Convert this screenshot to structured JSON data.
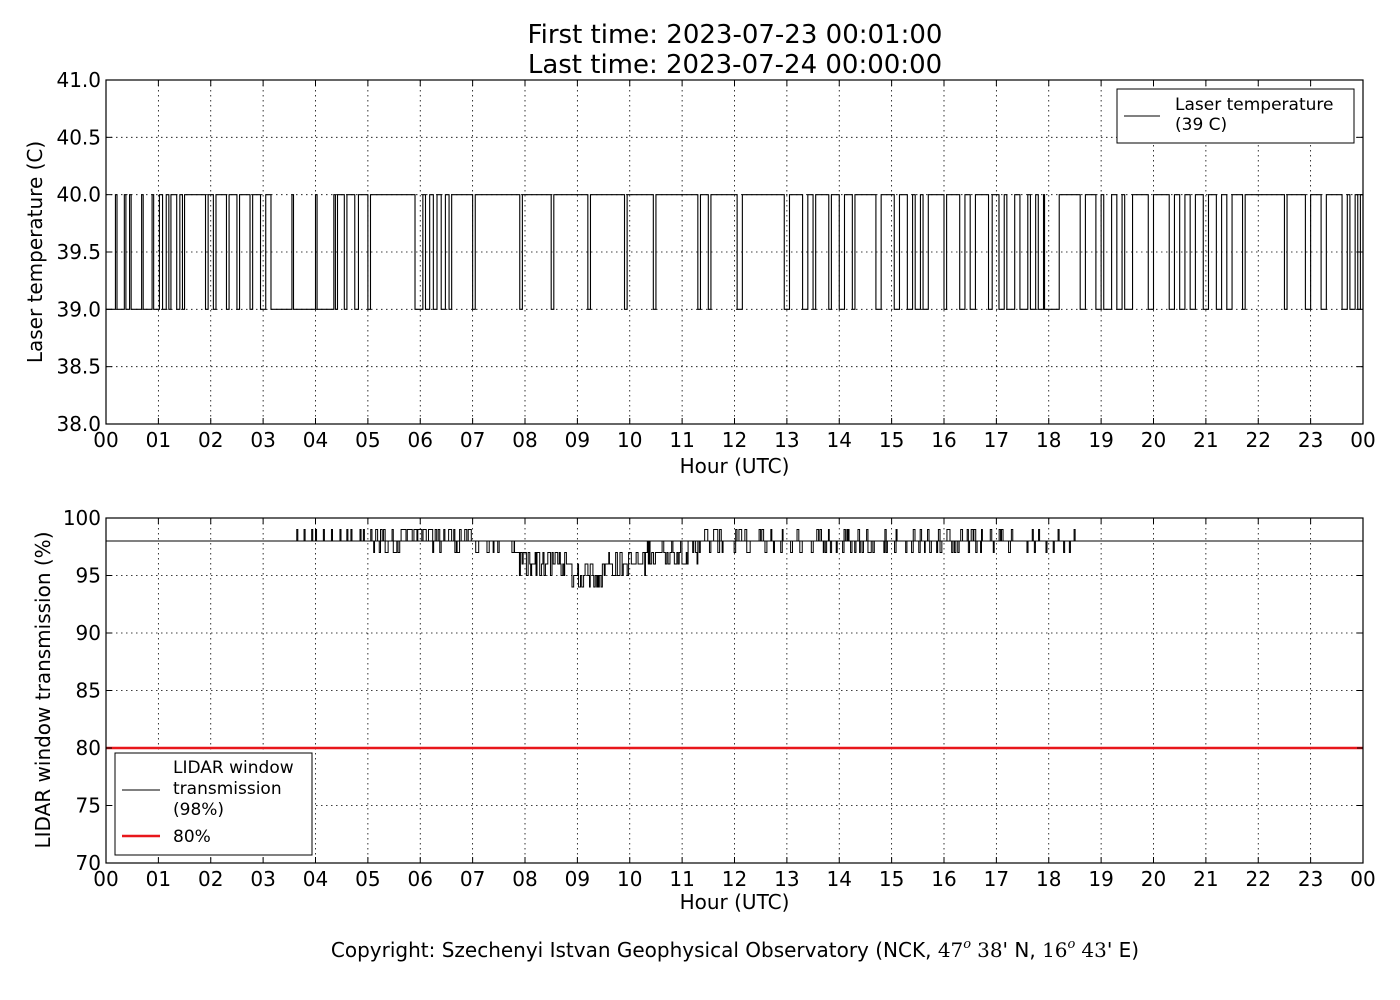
{
  "header": {
    "first_time": "First time: 2023-07-23 00:01:00",
    "last_time": "Last time: 2023-07-24 00:00:00"
  },
  "footer": {
    "prefix": "Copyright: Szechenyi Istvan Geophysical Observatory (NCK, ",
    "lat_deg": "47",
    "deg_mark": "o",
    "lat_min": "38",
    "lat_rest": "' N, ",
    "lon_deg": "16",
    "lon_min": "43",
    "lon_rest": "' E)"
  },
  "colors": {
    "series": "#000000",
    "threshold": "#e8171b",
    "grid": "#000000",
    "background": "#ffffff"
  },
  "chart_data": [
    {
      "type": "line",
      "xlabel": "Hour (UTC)",
      "ylabel": "Laser temperature (C)",
      "xlim": [
        0,
        24
      ],
      "ylim": [
        38.0,
        41.0
      ],
      "x_tick_labels": [
        "00",
        "01",
        "02",
        "03",
        "04",
        "05",
        "06",
        "07",
        "08",
        "09",
        "10",
        "11",
        "12",
        "13",
        "14",
        "15",
        "16",
        "17",
        "18",
        "19",
        "20",
        "21",
        "22",
        "23",
        "00"
      ],
      "y_ticks": [
        38.0,
        38.5,
        39.0,
        39.5,
        40.0,
        40.5,
        41.0
      ],
      "y_tick_labels": [
        "38.0",
        "38.5",
        "39.0",
        "39.5",
        "40.0",
        "40.5",
        "41.0"
      ],
      "grid": true,
      "legend_position": "top-right",
      "series": [
        {
          "name": "Laser temperature\n(39 C)",
          "low": 39.0,
          "high": 40.0,
          "high_segments": [
            [
              0.18,
              0.21
            ],
            [
              0.35,
              0.38
            ],
            [
              0.45,
              0.48
            ],
            [
              0.68,
              0.71
            ],
            [
              0.88,
              0.91
            ],
            [
              1.02,
              1.08
            ],
            [
              1.15,
              1.2
            ],
            [
              1.24,
              1.35
            ],
            [
              1.41,
              1.46
            ],
            [
              1.5,
              1.9
            ],
            [
              1.95,
              2.05
            ],
            [
              2.1,
              2.3
            ],
            [
              2.35,
              2.5
            ],
            [
              2.55,
              2.75
            ],
            [
              2.8,
              2.95
            ],
            [
              3.05,
              3.15
            ],
            [
              3.55,
              3.58
            ],
            [
              4.0,
              4.03
            ],
            [
              4.35,
              4.38
            ],
            [
              4.42,
              4.55
            ],
            [
              4.6,
              4.75
            ],
            [
              4.82,
              5.0
            ],
            [
              5.05,
              5.9
            ],
            [
              6.05,
              6.1
            ],
            [
              6.18,
              6.25
            ],
            [
              6.32,
              6.4
            ],
            [
              6.48,
              6.55
            ],
            [
              6.6,
              7.0
            ],
            [
              7.05,
              7.9
            ],
            [
              7.95,
              8.5
            ],
            [
              8.55,
              9.2
            ],
            [
              9.25,
              9.9
            ],
            [
              9.95,
              10.45
            ],
            [
              10.5,
              11.3
            ],
            [
              11.35,
              11.5
            ],
            [
              11.55,
              12.05
            ],
            [
              12.15,
              12.95
            ],
            [
              13.05,
              13.3
            ],
            [
              13.4,
              13.5
            ],
            [
              13.55,
              13.8
            ],
            [
              13.85,
              14.0
            ],
            [
              14.1,
              14.25
            ],
            [
              14.3,
              14.7
            ],
            [
              14.8,
              15.05
            ],
            [
              15.15,
              15.3
            ],
            [
              15.4,
              15.45
            ],
            [
              15.55,
              15.6
            ],
            [
              15.7,
              16.0
            ],
            [
              16.05,
              16.3
            ],
            [
              16.4,
              16.5
            ],
            [
              16.6,
              16.85
            ],
            [
              16.92,
              17.05
            ],
            [
              17.15,
              17.2
            ],
            [
              17.35,
              17.45
            ],
            [
              17.6,
              17.65
            ],
            [
              17.75,
              17.8
            ],
            [
              17.9,
              17.92
            ],
            [
              18.2,
              18.6
            ],
            [
              18.7,
              18.9
            ],
            [
              19.0,
              19.05
            ],
            [
              19.2,
              19.3
            ],
            [
              19.4,
              19.45
            ],
            [
              19.6,
              19.9
            ],
            [
              20.0,
              20.3
            ],
            [
              20.4,
              20.5
            ],
            [
              20.6,
              20.7
            ],
            [
              20.8,
              20.95
            ],
            [
              21.05,
              21.2
            ],
            [
              21.3,
              21.4
            ],
            [
              21.5,
              21.7
            ],
            [
              21.75,
              22.5
            ],
            [
              22.55,
              22.9
            ],
            [
              23.0,
              23.2
            ],
            [
              23.3,
              23.6
            ],
            [
              23.7,
              23.75
            ],
            [
              23.85,
              23.9
            ],
            [
              23.95,
              24.0
            ]
          ]
        }
      ]
    },
    {
      "type": "line",
      "xlabel": "Hour (UTC)",
      "ylabel": "LIDAR window transmission (%)",
      "xlim": [
        0,
        24
      ],
      "ylim": [
        70,
        100
      ],
      "x_tick_labels": [
        "00",
        "01",
        "02",
        "03",
        "04",
        "05",
        "06",
        "07",
        "08",
        "09",
        "10",
        "11",
        "12",
        "13",
        "14",
        "15",
        "16",
        "17",
        "18",
        "19",
        "20",
        "21",
        "22",
        "23",
        "00"
      ],
      "y_ticks": [
        70,
        75,
        80,
        85,
        90,
        95,
        100
      ],
      "y_tick_labels": [
        "70",
        "75",
        "80",
        "85",
        "90",
        "95",
        "100"
      ],
      "grid": true,
      "legend_position": "bottom-left",
      "series": [
        {
          "name": "LIDAR window\ntransmission\n(98%)",
          "baseline": 98,
          "segments": [
            {
              "start": 0.0,
              "end": 3.5,
              "mode": "flat",
              "base": 98
            },
            {
              "start": 3.5,
              "end": 5.0,
              "mode": "spikes",
              "base": 98,
              "vals": [
                99
              ],
              "rate": 0.12
            },
            {
              "start": 5.0,
              "end": 6.0,
              "mode": "noise",
              "vals": [
                97,
                98,
                99,
                99
              ],
              "step": 0.025
            },
            {
              "start": 6.0,
              "end": 7.0,
              "mode": "noise",
              "vals": [
                97,
                98,
                98,
                99,
                99
              ],
              "step": 0.025
            },
            {
              "start": 7.0,
              "end": 7.8,
              "mode": "noise",
              "vals": [
                97,
                98,
                98
              ],
              "step": 0.03
            },
            {
              "start": 7.8,
              "end": 8.8,
              "mode": "noise",
              "vals": [
                95,
                96,
                96,
                97,
                97
              ],
              "step": 0.025
            },
            {
              "start": 8.8,
              "end": 9.5,
              "mode": "noise",
              "vals": [
                94,
                95,
                95,
                96,
                96
              ],
              "step": 0.025
            },
            {
              "start": 9.5,
              "end": 10.3,
              "mode": "noise",
              "vals": [
                95,
                96,
                96,
                97
              ],
              "step": 0.025
            },
            {
              "start": 10.3,
              "end": 11.3,
              "mode": "noise",
              "vals": [
                96,
                97,
                97,
                98
              ],
              "step": 0.025
            },
            {
              "start": 11.3,
              "end": 17.5,
              "mode": "noise",
              "vals": [
                97,
                98,
                98,
                98,
                99
              ],
              "step": 0.025
            },
            {
              "start": 17.5,
              "end": 18.5,
              "mode": "spikes",
              "base": 98,
              "vals": [
                99,
                97
              ],
              "rate": 0.1
            },
            {
              "start": 18.5,
              "end": 24.0,
              "mode": "flat",
              "base": 98
            }
          ]
        },
        {
          "name": "80%",
          "threshold": 80
        }
      ]
    }
  ]
}
